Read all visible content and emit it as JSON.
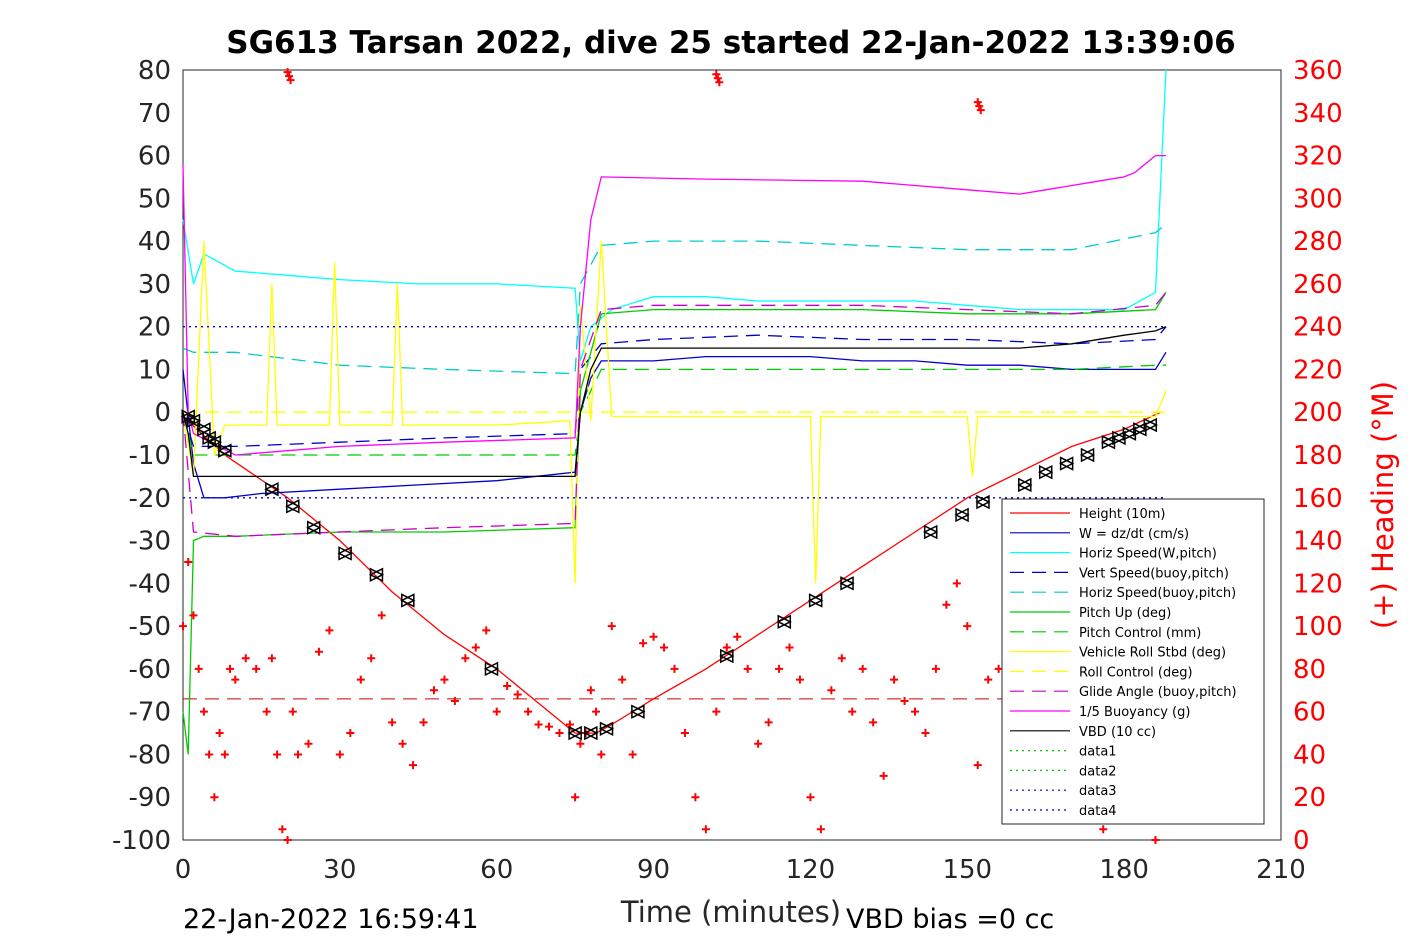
{
  "chart_data": {
    "type": "line",
    "title": "SG613 Tarsan 2022, dive 25 started 22-Jan-2022 13:39:06",
    "xlabel": "Time (minutes)",
    "ylabel_right": "(+) Heading (°M)",
    "xlim": [
      0,
      210
    ],
    "ylim": [
      -100,
      80
    ],
    "ylim_right": [
      0,
      360
    ],
    "x_ticks": [
      0,
      30,
      60,
      90,
      120,
      150,
      180,
      210
    ],
    "y_ticks": [
      -100,
      -90,
      -80,
      -70,
      -60,
      -50,
      -40,
      -30,
      -20,
      -10,
      0,
      10,
      20,
      30,
      40,
      50,
      60,
      70,
      80
    ],
    "y_ticks_right": [
      0,
      20,
      40,
      60,
      80,
      100,
      120,
      140,
      160,
      180,
      200,
      220,
      240,
      260,
      280,
      300,
      320,
      340,
      360
    ],
    "footer_left": "22-Jan-2022 16:59:41",
    "footer_right": "VBD bias =0 cc",
    "legend_position": "lower-right",
    "series": [
      {
        "name": "Height (10m)",
        "color": "#ff0000",
        "style": "solid",
        "x": [
          0,
          8,
          20,
          30,
          40,
          50,
          60,
          68,
          75,
          79,
          82,
          90,
          100,
          110,
          120,
          130,
          140,
          150,
          160,
          170,
          180,
          187
        ],
        "y": [
          -1,
          -10,
          -20,
          -30,
          -42,
          -52,
          -60,
          -68,
          -75,
          -75,
          -73,
          -67,
          -60,
          -52,
          -44,
          -36,
          -28,
          -20,
          -14,
          -8,
          -4,
          0
        ]
      },
      {
        "name": "W = dz/dt (cm/s)",
        "color": "#0000cc",
        "style": "solid",
        "x": [
          0,
          2,
          4,
          8,
          15,
          30,
          45,
          60,
          75,
          76,
          78,
          80,
          90,
          100,
          110,
          120,
          130,
          140,
          150,
          160,
          170,
          180,
          186,
          188
        ],
        "y": [
          10,
          -12,
          -20,
          -20,
          -19,
          -18,
          -17,
          -16,
          -14,
          0,
          8,
          12,
          12,
          13,
          13,
          13,
          12,
          12,
          11,
          11,
          10,
          10,
          10,
          14
        ]
      },
      {
        "name": "Horiz Speed(W,pitch)",
        "color": "#00ffff",
        "style": "solid",
        "x": [
          0,
          2,
          4,
          10,
          20,
          30,
          45,
          60,
          75,
          76,
          78,
          82,
          90,
          100,
          110,
          120,
          130,
          140,
          150,
          160,
          170,
          180,
          186,
          188
        ],
        "y": [
          45,
          30,
          37,
          33,
          32,
          31,
          30,
          30,
          29,
          12,
          20,
          24,
          27,
          27,
          26,
          26,
          26,
          26,
          25,
          24,
          24,
          24,
          28,
          80
        ]
      },
      {
        "name": "Vert Speed(buoy,pitch)",
        "color": "#0000cc",
        "style": "dashed",
        "x": [
          0,
          2,
          10,
          30,
          50,
          75,
          76,
          80,
          90,
          110,
          130,
          150,
          170,
          186,
          188
        ],
        "y": [
          0,
          -8,
          -8,
          -7,
          -6,
          -5,
          10,
          16,
          17,
          18,
          17,
          17,
          16,
          17,
          20
        ]
      },
      {
        "name": "Horiz Speed(buoy,pitch)",
        "color": "#00cccc",
        "style": "dashed",
        "x": [
          0,
          2,
          10,
          30,
          50,
          75,
          76,
          80,
          90,
          110,
          130,
          150,
          170,
          186,
          188
        ],
        "y": [
          15,
          14,
          14,
          11,
          10,
          9,
          30,
          39,
          40,
          40,
          39,
          38,
          38,
          42,
          44
        ]
      },
      {
        "name": "Pitch Up (deg)",
        "color": "#00cc00",
        "style": "solid",
        "x": [
          0,
          1,
          2,
          4,
          10,
          30,
          50,
          75,
          76,
          80,
          90,
          110,
          130,
          150,
          170,
          186,
          188
        ],
        "y": [
          -70,
          -80,
          -30,
          -29,
          -29,
          -28,
          -28,
          -27,
          5,
          23,
          24,
          24,
          24,
          23,
          23,
          24,
          28
        ]
      },
      {
        "name": "Pitch Control (mm)",
        "color": "#00cc00",
        "style": "dashed",
        "x": [
          0,
          2,
          10,
          30,
          50,
          75,
          76,
          80,
          90,
          110,
          130,
          150,
          170,
          186,
          188
        ],
        "y": [
          0,
          -10,
          -10,
          -10,
          -10,
          -10,
          0,
          10,
          10,
          10,
          10,
          10,
          10,
          11,
          11
        ]
      },
      {
        "name": "Vehicle Roll Stbd (deg)",
        "color": "#ffff00",
        "style": "solid",
        "x": [
          0,
          2,
          4,
          6,
          8,
          16,
          17,
          18,
          28,
          29,
          30,
          40,
          41,
          42,
          60,
          74,
          75,
          76,
          78,
          80,
          82,
          90,
          100,
          110,
          120,
          121,
          122,
          130,
          140,
          150,
          151,
          152,
          160,
          170,
          180,
          186,
          188
        ],
        "y": [
          0,
          -15,
          40,
          -10,
          -3,
          -3,
          30,
          -3,
          -3,
          35,
          -3,
          -3,
          30,
          -3,
          -3,
          -2,
          -40,
          25,
          -2,
          40,
          -1,
          -1,
          -1,
          -1,
          -1,
          -40,
          -1,
          -1,
          -1,
          -1,
          -15,
          -1,
          -1,
          -1,
          -1,
          -1,
          5
        ]
      },
      {
        "name": "Roll Control (deg)",
        "color": "#ffff00",
        "style": "dashed",
        "x": [
          0,
          2,
          30,
          60,
          75,
          76,
          90,
          120,
          150,
          186,
          188
        ],
        "y": [
          0,
          0,
          0,
          0,
          0,
          0,
          0,
          0,
          0,
          0,
          0
        ]
      },
      {
        "name": "Glide Angle (buoy,pitch)",
        "color": "#cc00cc",
        "style": "dashed",
        "x": [
          0,
          2,
          10,
          30,
          50,
          75,
          76,
          80,
          90,
          110,
          130,
          150,
          170,
          186,
          188
        ],
        "y": [
          0,
          -28,
          -29,
          -28,
          -27,
          -26,
          10,
          24,
          25,
          25,
          25,
          24,
          23,
          25,
          28
        ]
      },
      {
        "name": "1/5 Buoyancy (g)",
        "color": "#ff00ff",
        "style": "solid",
        "x": [
          0,
          1,
          2,
          10,
          20,
          30,
          50,
          75,
          76,
          78,
          80,
          100,
          130,
          150,
          160,
          165,
          170,
          175,
          180,
          182,
          184,
          186,
          188
        ],
        "y": [
          58,
          0,
          -5,
          -10,
          -9,
          -8,
          -7,
          -6,
          20,
          45,
          55,
          54.5,
          54,
          52,
          51,
          52,
          53,
          54,
          55,
          56,
          58,
          60,
          60
        ]
      },
      {
        "name": "VBD (10 cc)",
        "color": "#000000",
        "style": "solid",
        "x": [
          0,
          1,
          2,
          10,
          30,
          50,
          75,
          76,
          78,
          80,
          100,
          130,
          160,
          170,
          180,
          186,
          188
        ],
        "y": [
          0,
          -5,
          -15,
          -15,
          -15,
          -15,
          -15,
          0,
          10,
          15,
          15,
          15,
          15,
          16,
          18,
          19,
          20
        ]
      },
      {
        "name": "data1",
        "color": "#00cc00",
        "style": "dotted",
        "x": [],
        "y": []
      },
      {
        "name": "data2",
        "color": "#00cc00",
        "style": "dotted",
        "x": [],
        "y": []
      },
      {
        "name": "data3",
        "color": "#0000cc",
        "style": "dotted",
        "x": [
          0,
          188
        ],
        "y": [
          20,
          20
        ]
      },
      {
        "name": "data4",
        "color": "#0000cc",
        "style": "dotted",
        "x": [
          0,
          188
        ],
        "y": [
          -20,
          -20
        ]
      }
    ],
    "heading_series": {
      "axis": "right",
      "color": "#ff0000",
      "marker": "+",
      "x": [
        0,
        1,
        2,
        3,
        4,
        5,
        6,
        7,
        8,
        9,
        10,
        12,
        14,
        16,
        17,
        18,
        19,
        20,
        21,
        22,
        24,
        26,
        28,
        30,
        32,
        34,
        36,
        38,
        40,
        42,
        44,
        46,
        48,
        50,
        52,
        54,
        56,
        58,
        60,
        62,
        64,
        66,
        68,
        70,
        72,
        74,
        75,
        76,
        77,
        78,
        79,
        80,
        82,
        84,
        86,
        88,
        90,
        92,
        94,
        96,
        98,
        100,
        102,
        104,
        106,
        108,
        110,
        112,
        114,
        116,
        118,
        120,
        122,
        124,
        126,
        128,
        130,
        132,
        134,
        136,
        138,
        140,
        142,
        144,
        146,
        148,
        150,
        152,
        154,
        156,
        158,
        160,
        162,
        164,
        166,
        168,
        170,
        172,
        174,
        176,
        178,
        180,
        182,
        184,
        186
      ],
      "y": [
        100,
        130,
        105,
        80,
        60,
        40,
        20,
        50,
        40,
        80,
        75,
        85,
        80,
        60,
        85,
        40,
        5,
        0,
        60,
        40,
        45,
        88,
        98,
        40,
        50,
        75,
        85,
        105,
        55,
        45,
        35,
        55,
        70,
        75,
        65,
        85,
        90,
        98,
        60,
        72,
        68,
        60,
        54,
        53,
        50,
        54,
        20,
        45,
        50,
        70,
        60,
        40,
        100,
        75,
        40,
        92,
        95,
        90,
        80,
        50,
        20,
        5,
        60,
        90,
        95,
        80,
        45,
        55,
        80,
        90,
        75,
        20,
        5,
        70,
        85,
        60,
        80,
        55,
        30,
        75,
        65,
        60,
        50,
        80,
        110,
        120,
        100,
        35,
        75,
        80,
        70,
        60,
        50,
        55,
        30,
        10,
        50,
        40,
        20,
        5,
        60,
        20,
        40,
        50,
        0
      ]
    },
    "heading_wraps": [
      {
        "x": 20,
        "y": 359
      },
      {
        "x": 102,
        "y": 358
      },
      {
        "x": 152,
        "y": 345
      }
    ],
    "heading_reference": {
      "value": 66,
      "color": "#cc0000",
      "style": "dashed"
    },
    "triangle_markers": {
      "color": "#000000",
      "x": [
        1,
        2,
        4,
        5,
        6,
        8,
        17,
        21,
        25,
        31,
        37,
        43,
        59,
        75,
        78,
        81,
        87,
        104,
        115,
        121,
        127,
        143,
        149,
        153,
        161,
        165,
        169,
        173,
        177,
        179,
        181,
        183,
        185
      ],
      "y": [
        -1,
        -2,
        -4,
        -6,
        -7,
        -9,
        -18,
        -22,
        -27,
        -33,
        -38,
        -44,
        -60,
        -75,
        -75,
        -74,
        -70,
        -57,
        -49,
        -44,
        -40,
        -28,
        -24,
        -21,
        -17,
        -14,
        -12,
        -10,
        -7,
        -6,
        -5,
        -4,
        -3
      ]
    }
  }
}
